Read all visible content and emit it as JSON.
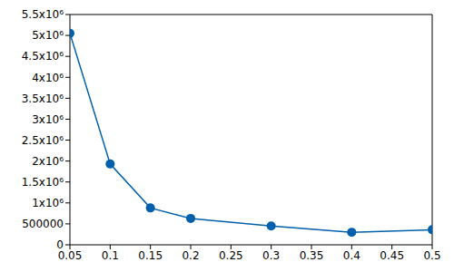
{
  "chart_data": {
    "type": "line",
    "x": [
      0.05,
      0.1,
      0.15,
      0.2,
      0.3,
      0.4,
      0.5
    ],
    "values": [
      5050000,
      1930000,
      880000,
      630000,
      450000,
      300000,
      360000
    ],
    "color": "#0060ad",
    "marker": "circle",
    "line_style": "solid",
    "xlim": [
      0.05,
      0.5
    ],
    "xticks": [
      0.05,
      0.1,
      0.15,
      0.2,
      0.25,
      0.3,
      0.35,
      0.4,
      0.45,
      0.5
    ],
    "ylim": [
      0,
      5500000
    ],
    "yticks": [
      0,
      500000,
      {
        "value": 1000000,
        "label": "1x10⁶"
      },
      {
        "value": 1500000,
        "label": "1.5x10⁶"
      },
      {
        "value": 2000000,
        "label": "2x10⁶"
      },
      {
        "value": 2500000,
        "label": "2.5x10⁶"
      },
      {
        "value": 3000000,
        "label": "3x10⁶"
      },
      {
        "value": 3500000,
        "label": "3.5x10⁶"
      },
      {
        "value": 4000000,
        "label": "4x10⁶"
      },
      {
        "value": 4500000,
        "label": "4.5x10⁶"
      },
      {
        "value": 5000000,
        "label": "5x10⁶"
      },
      {
        "value": 5500000,
        "label": "5.5x10⁶"
      }
    ],
    "grid": false
  }
}
